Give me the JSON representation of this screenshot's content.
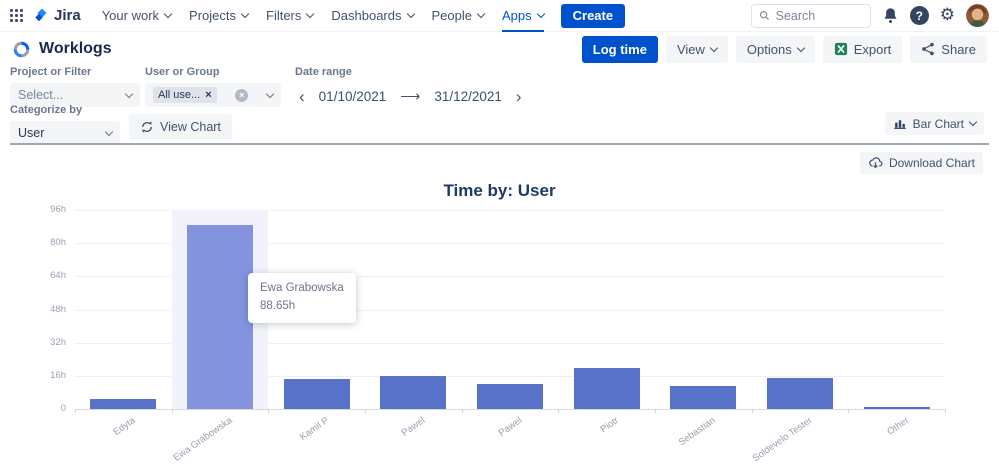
{
  "nav": {
    "brand": "Jira",
    "items": [
      {
        "label": "Your work"
      },
      {
        "label": "Projects"
      },
      {
        "label": "Filters"
      },
      {
        "label": "Dashboards"
      },
      {
        "label": "People"
      },
      {
        "label": "Apps"
      }
    ],
    "create_label": "Create",
    "search_placeholder": "Search"
  },
  "header": {
    "title": "Worklogs",
    "buttons": {
      "log_time": "Log time",
      "view": "View",
      "options": "Options",
      "export": "Export",
      "share": "Share"
    }
  },
  "filters": {
    "project": {
      "label": "Project or Filter",
      "value": "Select..."
    },
    "user_group": {
      "label": "User or Group",
      "tag": "All use...",
      "tag_remove": "×"
    },
    "date_range": {
      "label": "Date range",
      "start": "01/10/2021",
      "end": "31/12/2021"
    },
    "categorize": {
      "label": "Categorize by",
      "value": "User"
    },
    "view_chart": "View Chart",
    "chart_type": "Bar Chart",
    "download": "Download Chart"
  },
  "icons": {
    "settings": "⚙",
    "help": "?",
    "prev": "‹",
    "next": "›",
    "arrow": "⟶",
    "clear": "×"
  },
  "colors": {
    "accent": "#0052CC",
    "bar": "#5872C7",
    "bar_highlight": "#8393DE",
    "column_highlight": "#F2F3FA"
  },
  "chart_data": {
    "type": "bar",
    "title": "Time by: User",
    "categories": [
      "Edyta",
      "Ewa Grabowska",
      "Kamil P",
      "Pawel",
      "Pawel",
      "Piotr",
      "Sebastian",
      "Soldevelo Tester",
      "Other"
    ],
    "values": [
      5,
      88.65,
      14.5,
      16,
      12,
      20,
      11,
      15,
      1
    ],
    "unit": "h",
    "xlabel": "",
    "ylabel": "",
    "ylim": [
      0,
      96
    ],
    "yticks": [
      "0",
      "16h",
      "32h",
      "48h",
      "64h",
      "80h",
      "96h"
    ],
    "grid": true,
    "legend": false,
    "highlighted_index": 1,
    "tooltip": {
      "name": "Ewa Grabowska",
      "value": "88.65h"
    }
  }
}
